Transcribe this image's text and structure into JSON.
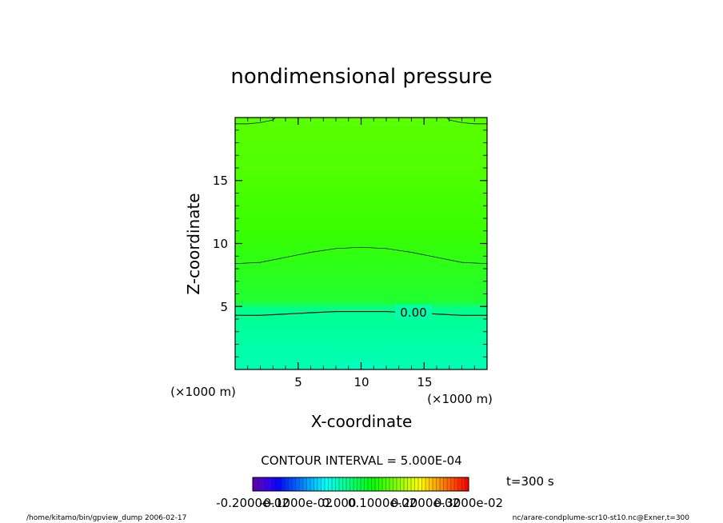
{
  "chart_data": {
    "type": "heatmap",
    "title": "nondimensional pressure",
    "xlabel": "X-coordinate",
    "ylabel": "Z-coordinate",
    "x_unit": "(×1000 m)",
    "y_unit": "(×1000 m)",
    "xlim": [
      0,
      20
    ],
    "ylim": [
      0,
      20
    ],
    "xticks": [
      5,
      10,
      15
    ],
    "yticks": [
      5,
      10,
      15
    ],
    "contour_label": "0.00",
    "contour_interval_text": "CONTOUR INTERVAL = 5.000E-04",
    "time_text": "t=300 s",
    "colorbar": {
      "tick_labels": [
        "-0.2000e-02",
        "-0.1000e-02",
        "0.000",
        "0.1000e-02",
        "0.2000e-02",
        "0.3000e-02"
      ],
      "range": [
        -0.002,
        0.003
      ]
    },
    "contours": [
      {
        "level": 0.0,
        "labeled": true,
        "x": [
          0,
          2,
          4,
          6,
          8,
          10,
          12,
          14,
          16,
          18,
          20
        ],
        "z": [
          4.3,
          4.3,
          4.4,
          4.5,
          4.6,
          4.6,
          4.6,
          4.5,
          4.4,
          4.3,
          4.3
        ]
      },
      {
        "level": 0.0005,
        "labeled": false,
        "x": [
          0,
          2,
          4,
          6,
          8,
          10,
          12,
          14,
          16,
          18,
          20
        ],
        "z": [
          8.4,
          8.5,
          8.9,
          9.3,
          9.6,
          9.7,
          9.6,
          9.3,
          8.9,
          8.5,
          8.4
        ]
      },
      {
        "level": 0.001,
        "labeled": false,
        "x": [
          0,
          1,
          2,
          3,
          3.2
        ],
        "z": [
          19.5,
          19.5,
          19.6,
          19.8,
          20.0
        ]
      },
      {
        "level": 0.001,
        "labeled": false,
        "x": [
          16.8,
          17,
          18,
          19,
          20
        ],
        "z": [
          20.0,
          19.8,
          19.6,
          19.5,
          19.5
        ]
      }
    ],
    "colors": {
      "low": "#00ffb4",
      "mid": "#33ff00",
      "high": "#5eff00"
    }
  },
  "footer": {
    "left": "/home/kitamo/bin/gpview_dump   2006-02-17",
    "right": "nc/arare-condplume-scr10-st10.nc@Exner,t=300"
  }
}
